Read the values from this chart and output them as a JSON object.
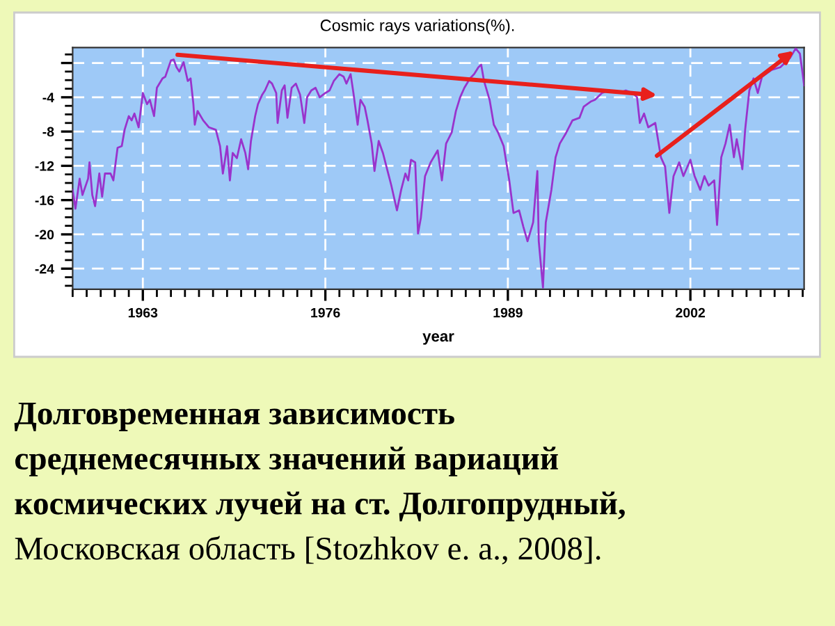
{
  "chart_data": {
    "type": "line",
    "title": "Cosmic rays variations(%).",
    "xlabel": "year",
    "annotations": [
      "Долговременная зависимость",
      "среднемесячных значений вариаций",
      "космических лучей на ст. Долгопрудный,",
      "Московская область [Stozhkov e. a., 2008]."
    ],
    "xlim": [
      1958,
      2010.1
    ],
    "ylim": [
      -26.4,
      1.8
    ],
    "xticks": [
      1963,
      1976,
      1989,
      2002
    ],
    "yticks": [
      {
        "value": 0,
        "label": null
      },
      -4,
      -8,
      -12,
      -16,
      -20,
      -24
    ],
    "grid": true,
    "marker": "none",
    "line_style": "solid",
    "series": [
      {
        "color": "#9933cc",
        "x": [
          1958.0,
          1958.2,
          1958.5,
          1958.7,
          1959.1,
          1959.2,
          1959.4,
          1959.6,
          1959.9,
          1960.1,
          1960.3,
          1960.7,
          1960.9,
          1961.2,
          1961.5,
          1961.7,
          1962.0,
          1962.2,
          1962.4,
          1962.7,
          1963.0,
          1963.3,
          1963.5,
          1963.8,
          1964.0,
          1964.4,
          1964.6,
          1965.0,
          1965.2,
          1965.4,
          1965.6,
          1965.9,
          1966.2,
          1966.4,
          1966.6,
          1966.7,
          1966.9,
          1967.3,
          1967.7,
          1968.2,
          1968.5,
          1968.7,
          1969.0,
          1969.2,
          1969.4,
          1969.7,
          1970.0,
          1970.3,
          1970.5,
          1970.7,
          1971.0,
          1971.2,
          1971.5,
          1971.7,
          1972.0,
          1972.2,
          1972.5,
          1972.6,
          1972.9,
          1973.1,
          1973.3,
          1973.6,
          1973.9,
          1974.2,
          1974.5,
          1974.7,
          1975.0,
          1975.3,
          1975.6,
          1976.0,
          1976.3,
          1976.6,
          1977.0,
          1977.3,
          1977.5,
          1977.8,
          1978.0,
          1978.3,
          1978.5,
          1978.8,
          1979.0,
          1979.3,
          1979.5,
          1979.8,
          1980.1,
          1980.4,
          1980.7,
          1981.1,
          1981.4,
          1981.7,
          1981.9,
          1982.1,
          1982.4,
          1982.6,
          1982.8,
          1983.1,
          1983.5,
          1984.0,
          1984.3,
          1984.6,
          1985.0,
          1985.3,
          1985.6,
          1985.9,
          1986.3,
          1986.6,
          1986.9,
          1987.1,
          1987.3,
          1987.7,
          1988.0,
          1988.3,
          1988.7,
          1989.1,
          1989.4,
          1989.8,
          1990.1,
          1990.4,
          1990.8,
          1991.1,
          1991.2,
          1991.5,
          1991.7,
          1992.1,
          1992.4,
          1992.7,
          1993.1,
          1993.6,
          1994.1,
          1994.4,
          1994.9,
          1995.2,
          1995.7,
          1996.2,
          1996.9,
          1997.4,
          1997.9,
          1998.2,
          1998.4,
          1998.7,
          1999.0,
          1999.5,
          1999.9,
          2000.2,
          2000.5,
          2000.8,
          2001.2,
          2001.5,
          2002.0,
          2002.3,
          2002.7,
          2003.0,
          2003.3,
          2003.7,
          2003.9,
          2004.2,
          2004.5,
          2004.8,
          2005.1,
          2005.3,
          2005.7,
          2005.9,
          2006.2,
          2006.5,
          2006.8,
          2007.1,
          2007.8,
          2008.4,
          2009.1,
          2009.5,
          2009.8,
          2010.0,
          2010.1
        ],
        "values": [
          -14.8,
          -17.0,
          -13.5,
          -15.4,
          -13.5,
          -11.6,
          -15.4,
          -16.7,
          -12.9,
          -15.6,
          -12.9,
          -12.9,
          -13.7,
          -9.9,
          -9.7,
          -7.8,
          -6.2,
          -6.7,
          -5.9,
          -7.5,
          -3.5,
          -4.8,
          -4.3,
          -6.2,
          -2.9,
          -1.8,
          -1.6,
          0.3,
          0.4,
          -0.5,
          -1.0,
          0.1,
          -2.1,
          -1.8,
          -4.8,
          -7.2,
          -5.6,
          -6.7,
          -7.5,
          -7.8,
          -9.7,
          -12.9,
          -9.7,
          -13.7,
          -10.5,
          -11.1,
          -8.9,
          -10.5,
          -12.4,
          -9.1,
          -6.2,
          -4.8,
          -3.7,
          -3.2,
          -2.1,
          -2.4,
          -3.5,
          -7.0,
          -3.2,
          -2.6,
          -6.4,
          -2.9,
          -2.4,
          -3.7,
          -7.0,
          -4.0,
          -3.2,
          -2.9,
          -4.0,
          -3.5,
          -3.2,
          -2.1,
          -1.3,
          -1.6,
          -2.4,
          -1.3,
          -3.5,
          -7.2,
          -4.3,
          -5.1,
          -6.7,
          -9.4,
          -12.6,
          -9.1,
          -10.5,
          -12.4,
          -14.3,
          -17.2,
          -14.8,
          -12.9,
          -13.7,
          -11.3,
          -11.6,
          -19.9,
          -18.1,
          -13.2,
          -11.6,
          -10.2,
          -13.7,
          -9.4,
          -8.1,
          -5.6,
          -4.0,
          -2.9,
          -1.8,
          -1.3,
          -0.5,
          -0.2,
          -2.1,
          -4.3,
          -7.2,
          -8.1,
          -9.7,
          -13.7,
          -17.5,
          -17.2,
          -19.1,
          -20.8,
          -18.6,
          -12.6,
          -20.8,
          -26.2,
          -18.6,
          -14.8,
          -11.0,
          -9.4,
          -8.3,
          -6.7,
          -6.4,
          -5.1,
          -4.5,
          -4.3,
          -3.5,
          -3.2,
          -3.5,
          -3.2,
          -3.5,
          -4.0,
          -7.0,
          -5.9,
          -7.5,
          -7.0,
          -11.0,
          -12.1,
          -17.5,
          -13.2,
          -11.6,
          -13.2,
          -11.3,
          -13.2,
          -14.8,
          -13.2,
          -14.3,
          -13.7,
          -18.9,
          -11.0,
          -9.4,
          -7.2,
          -11.0,
          -8.9,
          -12.4,
          -7.8,
          -3.2,
          -1.8,
          -3.5,
          -1.6,
          -0.8,
          -0.5,
          0.6,
          1.7,
          1.1,
          -1.3,
          -2.6
        ]
      }
    ]
  }
}
